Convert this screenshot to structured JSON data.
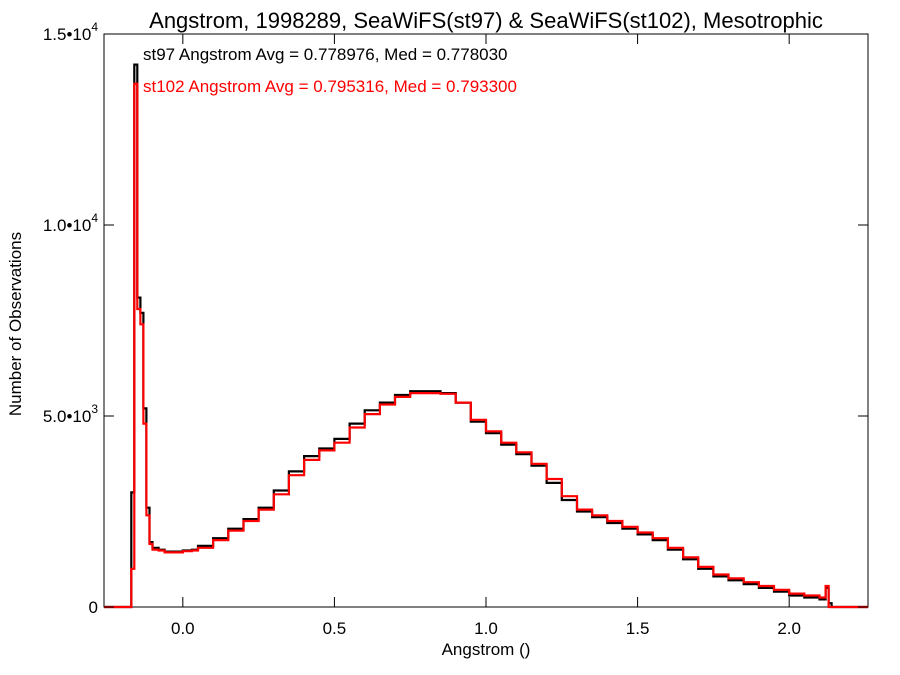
{
  "chart_data": {
    "type": "line",
    "title": "Angstrom, 1998289, SeaWiFS(st97) & SeaWiFS(st102), Mesotrophic",
    "xlabel": "Angstrom ()",
    "ylabel": "Number of Observations",
    "xlim": [
      -0.26,
      2.26
    ],
    "ylim": [
      0,
      15000
    ],
    "xticks": [
      {
        "value": 0.0,
        "label": "0.0"
      },
      {
        "value": 0.5,
        "label": "0.5"
      },
      {
        "value": 1.0,
        "label": "1.0"
      },
      {
        "value": 1.5,
        "label": "1.5"
      },
      {
        "value": 2.0,
        "label": "2.0"
      }
    ],
    "yticks": [
      {
        "value": 0,
        "mant": "0",
        "exp": ""
      },
      {
        "value": 5000,
        "mant": "5.0•10",
        "exp": "3"
      },
      {
        "value": 10000,
        "mant": "1.0•10",
        "exp": "4"
      },
      {
        "value": 15000,
        "mant": "1.5•10",
        "exp": "4"
      }
    ],
    "grid": false,
    "step": "histogram",
    "annotations": [
      {
        "text": "st97 Angstrom Avg = 0.778976, Med = 0.778030",
        "color": "#000000"
      },
      {
        "text": "st102 Angstrom Avg = 0.795316, Med = 0.793300",
        "color": "#ff0000"
      }
    ],
    "x": [
      -0.26,
      -0.19,
      -0.17,
      -0.16,
      -0.15,
      -0.14,
      -0.13,
      -0.12,
      -0.11,
      -0.1,
      -0.08,
      -0.06,
      -0.03,
      0.0,
      0.03,
      0.05,
      0.1,
      0.15,
      0.2,
      0.25,
      0.3,
      0.35,
      0.4,
      0.45,
      0.5,
      0.55,
      0.6,
      0.65,
      0.7,
      0.75,
      0.8,
      0.85,
      0.9,
      0.95,
      1.0,
      1.05,
      1.1,
      1.15,
      1.2,
      1.25,
      1.3,
      1.35,
      1.4,
      1.45,
      1.5,
      1.55,
      1.6,
      1.65,
      1.7,
      1.75,
      1.8,
      1.85,
      1.9,
      1.95,
      2.0,
      2.05,
      2.1,
      2.12,
      2.13,
      2.14,
      2.15,
      2.26
    ],
    "series": [
      {
        "name": "st97",
        "color": "#000000",
        "values": [
          0,
          0,
          3000,
          14200,
          8100,
          7700,
          5200,
          2600,
          1700,
          1550,
          1500,
          1450,
          1450,
          1480,
          1500,
          1600,
          1800,
          2050,
          2300,
          2600,
          3050,
          3550,
          3950,
          4150,
          4400,
          4800,
          5150,
          5350,
          5550,
          5650,
          5650,
          5600,
          5350,
          4850,
          4550,
          4250,
          4000,
          3700,
          3250,
          2800,
          2500,
          2350,
          2200,
          2050,
          1900,
          1750,
          1500,
          1250,
          1000,
          800,
          700,
          600,
          500,
          400,
          300,
          250,
          200,
          500,
          100,
          0,
          0,
          0
        ]
      },
      {
        "name": "st102",
        "color": "#ff0000",
        "values": [
          0,
          0,
          1000,
          13700,
          7800,
          7400,
          4800,
          2400,
          1650,
          1500,
          1480,
          1430,
          1430,
          1460,
          1480,
          1550,
          1750,
          2000,
          2250,
          2550,
          2950,
          3450,
          3850,
          4100,
          4300,
          4700,
          5050,
          5300,
          5500,
          5600,
          5600,
          5580,
          5350,
          4900,
          4600,
          4300,
          4050,
          3750,
          3350,
          2900,
          2550,
          2400,
          2250,
          2100,
          1950,
          1800,
          1550,
          1300,
          1050,
          850,
          750,
          650,
          550,
          450,
          350,
          300,
          250,
          550,
          0,
          0,
          0,
          0
        ]
      }
    ]
  }
}
